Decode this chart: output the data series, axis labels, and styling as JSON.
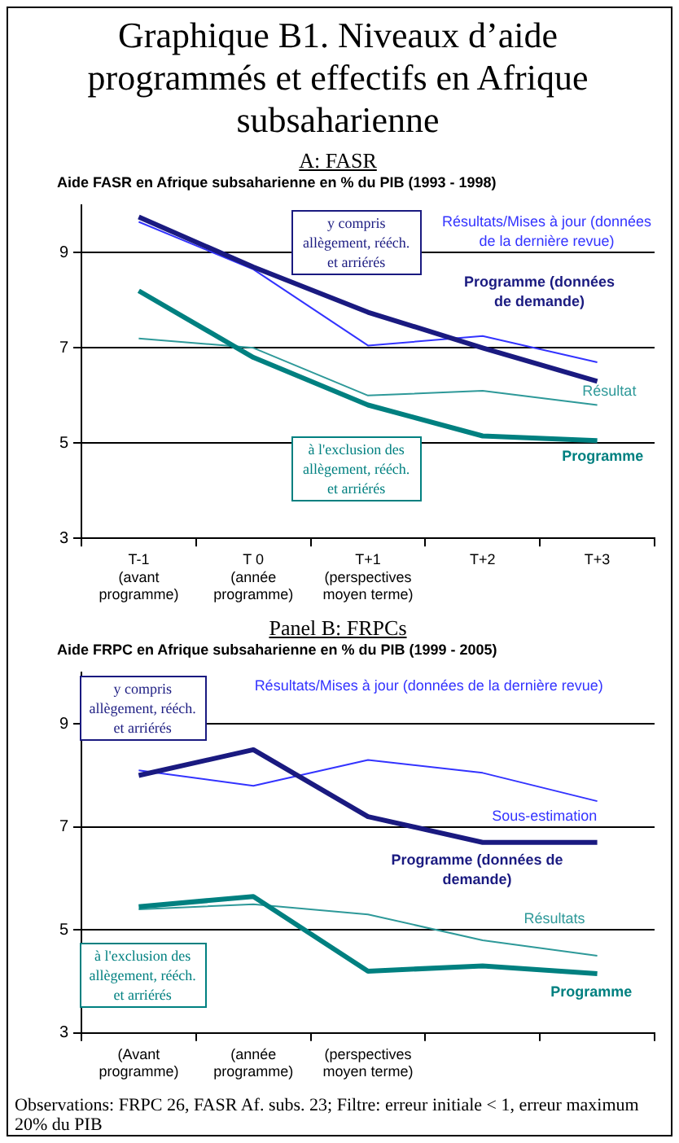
{
  "chart_data": [
    {
      "type": "line",
      "title": "Graphique B1. Niveaux d’aide programmés et effectifs en Afrique subsaharienne",
      "subtitle": "A: FASR",
      "categories": [
        "T-1\n(avant\nprogramme)",
        "T 0\n(année\nprogramme)",
        "T+1\n(perspectives\nmoyen terme)",
        "T+2",
        "T+3"
      ],
      "series": [
        {
          "name": "Programme (données de demande)",
          "color": "#1a1a80",
          "values": [
            9.75,
            8.7,
            7.75,
            7.0,
            6.3
          ]
        },
        {
          "name": "Résultats/Mises à jour (données de la dernière revue)",
          "color": "#3333ff",
          "values": [
            9.65,
            8.65,
            7.05,
            7.25,
            6.7
          ]
        },
        {
          "name": "Programme",
          "color": "#008080",
          "values": [
            8.2,
            6.8,
            5.8,
            5.15,
            5.05
          ]
        },
        {
          "name": "Résultat",
          "color": "#2e9999",
          "values": [
            7.2,
            7.0,
            6.0,
            6.1,
            5.8
          ]
        }
      ],
      "ylim": [
        3,
        10
      ],
      "yticks": [
        3,
        5,
        7,
        9
      ],
      "grid": "y",
      "legend": false,
      "marker": "none",
      "annotations": [
        "Aide FASR en Afrique subsaharienne en % du PIB (1993 - 1998)",
        "y compris allègement, rééch. et arriérés",
        "à l'exclusion des allègement, rééch. et arriérés"
      ]
    },
    {
      "type": "line",
      "title": "Panel B: FRPCs",
      "subtitle": "Aide FRPC en Afrique subsaharienne en % du PIB (1999 - 2005)",
      "categories": [
        "(Avant\nprogramme)",
        "(année\nprogramme)",
        "(perspectives\nmoyen terme)",
        null,
        null
      ],
      "series": [
        {
          "name": "Programme (données de demande)",
          "color": "#1a1a80",
          "values": [
            8.0,
            8.5,
            7.2,
            6.7,
            6.7
          ]
        },
        {
          "name": "Résultats/Mises à jour (données de la dernière revue)",
          "color": "#3333ff",
          "values": [
            8.1,
            7.8,
            8.3,
            8.05,
            7.5
          ]
        },
        {
          "name": "Programme",
          "color": "#008080",
          "values": [
            5.45,
            5.65,
            4.2,
            4.3,
            4.15
          ]
        },
        {
          "name": "Résultats",
          "color": "#2e9999",
          "values": [
            5.4,
            5.5,
            5.3,
            4.8,
            4.5
          ]
        }
      ],
      "ylim": [
        3,
        10
      ],
      "yticks": [
        3,
        5,
        7,
        9
      ],
      "grid": "y",
      "legend": false,
      "marker": "none",
      "annotations": [
        "y compris allègement, rééch. et arriérés",
        "à l'exclusion des allègement, rééch. et arriérés",
        "Sous-estimation",
        "Observations: FRPC 26, FASR Af. subs. 23; Filtre: erreur initiale < 1, erreur maximum 20% du PIB"
      ]
    }
  ]
}
